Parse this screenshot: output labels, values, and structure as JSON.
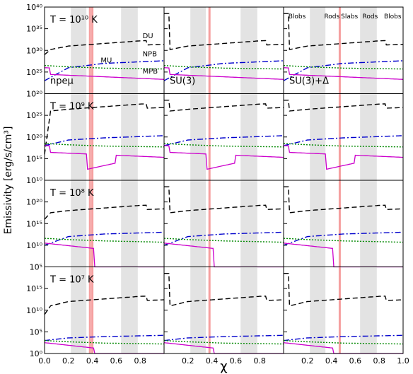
{
  "chart_data": {
    "type": "line",
    "ylabel": "Emissivity [erg/s/cm³]",
    "xlabel": "χ",
    "xlim": [
      0.0,
      1.0
    ],
    "x_ticks": [
      "0.0",
      "0.2",
      "0.4",
      "0.6",
      "0.8",
      "1.0"
    ],
    "ylim_log10": [
      0,
      40
    ],
    "y_scale": "log",
    "grid": false,
    "columns": [
      {
        "key": "npemu",
        "label": "npeμ",
        "pasta_bands": [
          [
            0.22,
            0.35
          ]
        ],
        "red_lines": [
          0.38,
          0.4
        ],
        "extra_bands": [
          [
            0.64,
            0.78
          ]
        ]
      },
      {
        "key": "su3",
        "label": "SU(3)",
        "pasta_bands": [
          [
            0.0,
            0.0
          ]
        ],
        "red_lines": [
          0.38
        ],
        "extra_bands": [
          [
            0.64,
            0.78
          ]
        ]
      },
      {
        "key": "su3delta",
        "label": "SU(3)+Δ",
        "pasta_bands": [
          [
            0.22,
            0.35
          ]
        ],
        "red_lines": [
          0.47
        ],
        "extra_bands": [
          [
            0.64,
            0.78
          ]
        ]
      }
    ],
    "band_labels": [
      "Blobs",
      "Rods",
      "Slabs",
      "Rods",
      "Blobs"
    ],
    "rows": [
      {
        "temperature_label": "T = 10¹⁰ K",
        "ytick_labels": [
          "10²⁰",
          "10²⁵",
          "10³⁰",
          "10³⁵",
          "10⁴⁰"
        ],
        "ytick_vals": [
          20,
          25,
          30,
          35,
          40
        ],
        "ylim_log10": [
          20,
          40
        ]
      },
      {
        "temperature_label": "T = 10⁹ K",
        "ytick_labels": [
          "10¹⁰",
          "10¹⁵",
          "10²⁰",
          "10²⁵"
        ],
        "ytick_vals": [
          10,
          15,
          20,
          25
        ],
        "ylim_log10": [
          10,
          30
        ]
      },
      {
        "temperature_label": "T = 10⁸ K",
        "ytick_labels": [
          "10⁵",
          "10¹⁰",
          "10¹⁵",
          "10²⁰"
        ],
        "ytick_vals": [
          5,
          10,
          15,
          20
        ],
        "ylim_log10": [
          5,
          25
        ]
      },
      {
        "temperature_label": "T = 10⁷ K",
        "ytick_labels": [
          "10⁰",
          "10⁵",
          "10¹⁰",
          "10¹⁵"
        ],
        "ytick_vals": [
          0,
          5,
          10,
          15
        ],
        "ylim_log10": [
          0,
          20
        ]
      }
    ],
    "series": [
      {
        "name": "DU",
        "color": "#000000",
        "style": "dashed"
      },
      {
        "name": "NPB",
        "color": "#0000cc",
        "style": "dashdot"
      },
      {
        "name": "MU",
        "color": "#008800",
        "style": "dotted"
      },
      {
        "name": "MPB",
        "color": "#cc00cc",
        "style": "solid"
      }
    ],
    "curves_log10": {
      "DU": [
        [
          0.0,
          [
            29.0,
            16.0,
            16.0,
            9.0
          ]
        ],
        [
          0.05,
          [
            30.2,
            26.0,
            17.5,
            11.0
          ]
        ],
        [
          0.2,
          [
            31.0,
            26.4,
            18.0,
            12.0
          ]
        ],
        [
          0.5,
          [
            31.6,
            27.0,
            18.6,
            12.6
          ]
        ],
        [
          0.8,
          [
            32.2,
            27.6,
            19.2,
            13.2
          ]
        ],
        [
          1.0,
          [
            32.4,
            27.8,
            19.4,
            13.4
          ]
        ]
      ],
      "NPB": [
        [
          0.0,
          [
            23.0,
            18.0,
            10.0,
            3.0
          ]
        ],
        [
          0.2,
          [
            26.0,
            19.3,
            12.0,
            3.6
          ]
        ],
        [
          0.5,
          [
            27.0,
            19.8,
            12.6,
            3.9
          ]
        ],
        [
          1.0,
          [
            27.6,
            20.3,
            13.0,
            4.2
          ]
        ]
      ],
      "MU": [
        [
          0.0,
          [
            26.5,
            18.5,
            11.6,
            3.0
          ]
        ],
        [
          0.2,
          [
            26.2,
            18.2,
            11.3,
            2.7
          ]
        ],
        [
          0.5,
          [
            25.9,
            17.9,
            11.0,
            2.4
          ]
        ],
        [
          1.0,
          [
            25.7,
            17.7,
            10.7,
            2.2
          ]
        ]
      ]
    },
    "legend_placement": "inside top-right of first panel"
  },
  "figure_text": {
    "xlabel": "χ",
    "ylabel": "Emissivity [erg/s/cm³]"
  }
}
